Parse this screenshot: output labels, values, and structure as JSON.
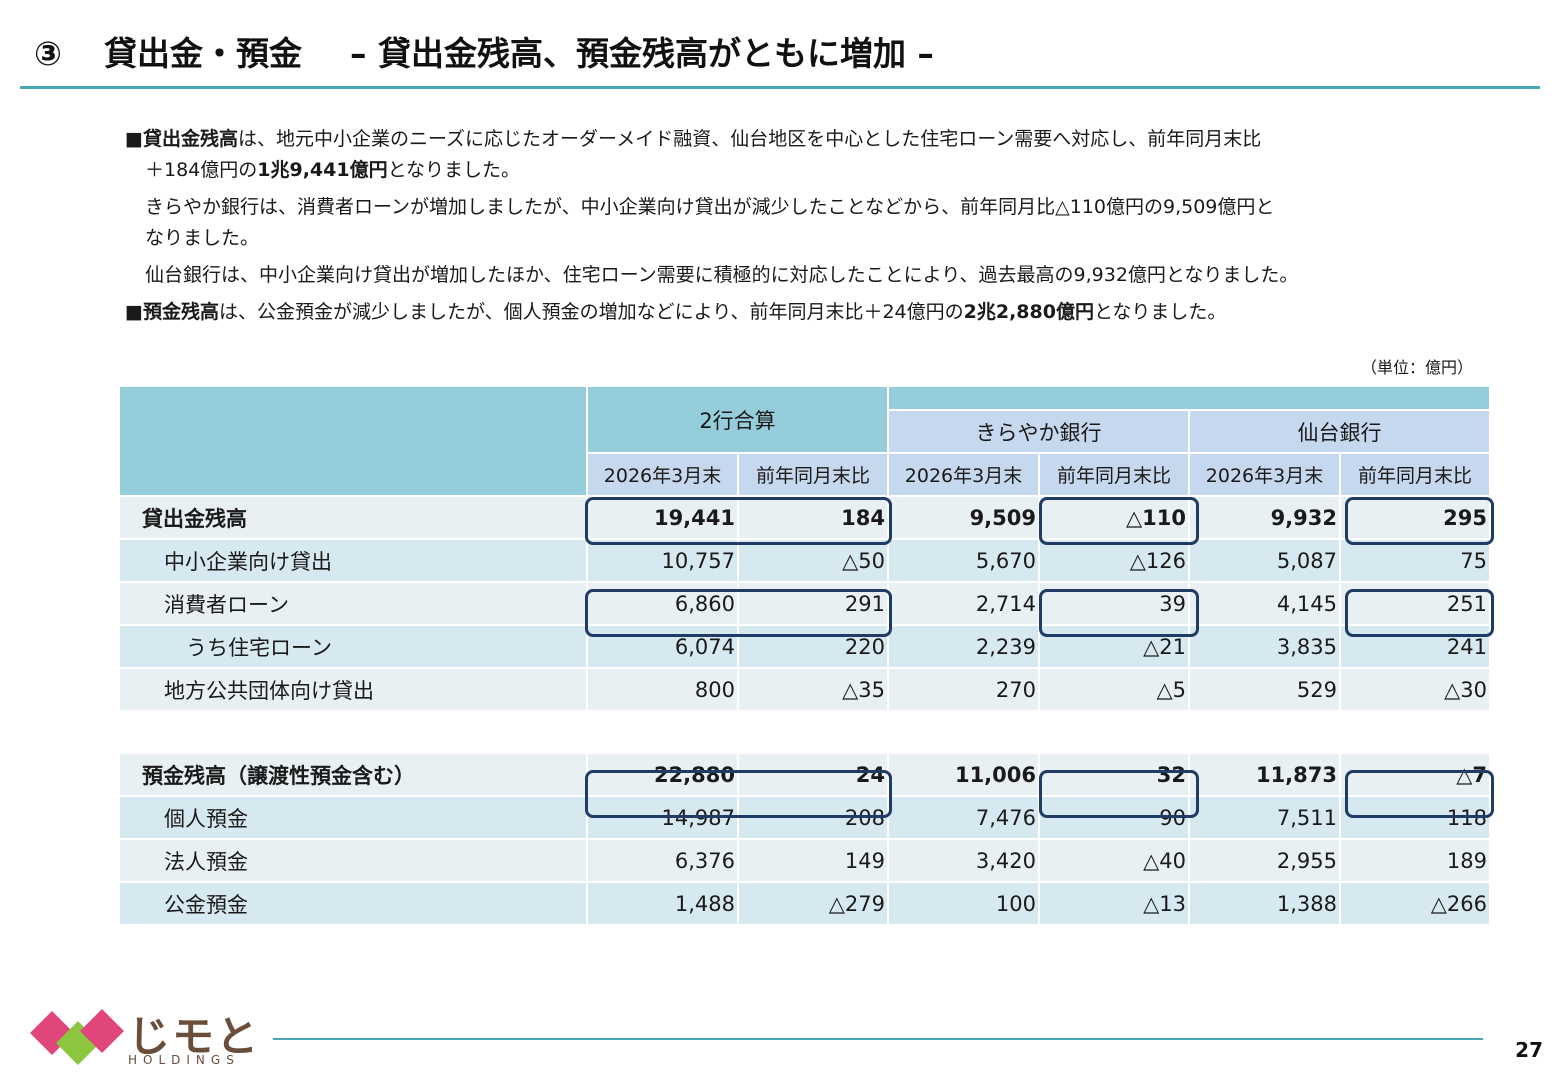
{
  "title": {
    "number": "③",
    "main": "貸出金・預金",
    "sub": "–  貸出金残高、預金残高がともに増加  –"
  },
  "bullets": {
    "loan": {
      "marker": "■",
      "bold1": "貸出金残高",
      "text1": "は、地元中小企業のニーズに応じたオーダーメイド融資、仙台地区を中心とした住宅ローン需要へ対応し、前年同月末比",
      "text2": "＋184億円の",
      "bold2": "1兆9,441億円",
      "text3": "となりました。"
    },
    "kirayaka": "きらやか銀行は、消費者ローンが増加しましたが、中小企業向け貸出が減少したことなどから、前年同月比△110億円の9,509億円と",
    "kirayaka_cont": "なりました。",
    "sendai": "仙台銀行は、中小企業向け貸出が増加したほか、住宅ローン需要に積極的に対応したことにより、過去最高の9,932億円となりました。",
    "deposit": {
      "marker": "■",
      "bold1": "預金残高",
      "text1": "は、公金預金が減少しましたが、個人預金の増加などにより、前年同月末比＋24億円の",
      "bold2": "2兆2,880億円",
      "text2": "となりました。"
    }
  },
  "unit": "（単位：億円）",
  "table": {
    "group_total": "2行合算",
    "bank1": "きらやか銀行",
    "bank2": "仙台銀行",
    "col_period": "2026年3月末",
    "col_yoy": "前年同月末比",
    "rows": [
      {
        "label": "貸出金残高",
        "values": [
          "19,441",
          "184",
          "9,509",
          "△110",
          "9,932",
          "295"
        ]
      },
      {
        "label": "中小企業向け貸出",
        "values": [
          "10,757",
          "△50",
          "5,670",
          "△126",
          "5,087",
          "75"
        ]
      },
      {
        "label": "消費者ローン",
        "values": [
          "6,860",
          "291",
          "2,714",
          "39",
          "4,145",
          "251"
        ]
      },
      {
        "label": "うち住宅ローン",
        "values": [
          "6,074",
          "220",
          "2,239",
          "△21",
          "3,835",
          "241"
        ]
      },
      {
        "label": "地方公共団体向け貸出",
        "values": [
          "800",
          "△35",
          "270",
          "△5",
          "529",
          "△30"
        ]
      },
      {
        "label": "預金残高（譲渡性預金含む）",
        "values": [
          "22,880",
          "24",
          "11,006",
          "32",
          "11,873",
          "△7"
        ]
      },
      {
        "label": "個人預金",
        "values": [
          "14,987",
          "208",
          "7,476",
          "90",
          "7,511",
          "118"
        ]
      },
      {
        "label": "法人預金",
        "values": [
          "6,376",
          "149",
          "3,420",
          "△40",
          "2,955",
          "189"
        ]
      },
      {
        "label": "公金預金",
        "values": [
          "1,488",
          "△279",
          "100",
          "△13",
          "1,388",
          "△266"
        ]
      }
    ]
  },
  "logo": {
    "name": "じモと",
    "sub": "HOLDINGS",
    "colors": [
      "#e0457b",
      "#8cc63f",
      "#f4a3b8"
    ]
  },
  "page_number": "27"
}
